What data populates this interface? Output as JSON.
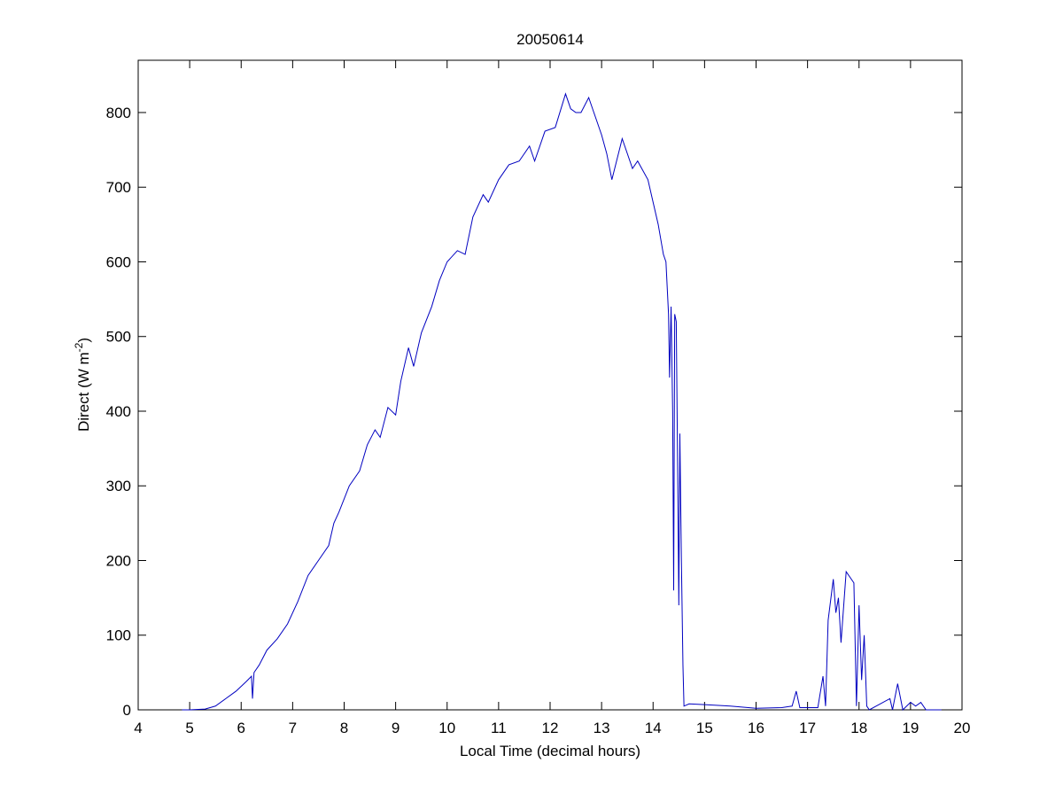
{
  "chart_data": {
    "type": "line",
    "title": "20050614",
    "xlabel": "Local Time (decimal hours)",
    "ylabel_parts": [
      "Direct (W m",
      "-2",
      ")"
    ],
    "x": [
      4.85,
      5.0,
      5.3,
      5.5,
      5.7,
      5.9,
      6.1,
      6.2,
      6.22,
      6.25,
      6.35,
      6.5,
      6.7,
      6.9,
      7.1,
      7.3,
      7.5,
      7.7,
      7.8,
      7.9,
      8.1,
      8.3,
      8.45,
      8.6,
      8.7,
      8.85,
      9.0,
      9.1,
      9.25,
      9.35,
      9.5,
      9.7,
      9.85,
      10.0,
      10.2,
      10.35,
      10.5,
      10.7,
      10.8,
      11.0,
      11.2,
      11.4,
      11.6,
      11.7,
      11.9,
      12.1,
      12.3,
      12.4,
      12.5,
      12.6,
      12.75,
      12.85,
      13.0,
      13.1,
      13.2,
      13.4,
      13.6,
      13.7,
      13.9,
      14.0,
      14.1,
      14.2,
      14.25,
      14.3,
      14.32,
      14.35,
      14.38,
      14.4,
      14.42,
      14.45,
      14.48,
      14.5,
      14.52,
      14.55,
      14.58,
      14.6,
      14.7,
      15.0,
      15.5,
      16.0,
      16.5,
      16.7,
      16.78,
      16.85,
      17.2,
      17.3,
      17.35,
      17.4,
      17.5,
      17.55,
      17.6,
      17.65,
      17.75,
      17.9,
      17.95,
      18.0,
      18.05,
      18.1,
      18.15,
      18.2,
      18.6,
      18.65,
      18.75,
      18.85,
      19.0,
      19.1,
      19.2,
      19.3,
      19.6
    ],
    "series": [
      {
        "name": "Direct",
        "color": "#0000c0",
        "values": [
          0,
          0,
          1,
          5,
          15,
          25,
          38,
          45,
          15,
          50,
          60,
          80,
          95,
          115,
          145,
          180,
          200,
          220,
          250,
          265,
          300,
          320,
          355,
          375,
          365,
          405,
          395,
          440,
          485,
          460,
          505,
          540,
          575,
          600,
          615,
          610,
          660,
          690,
          680,
          710,
          730,
          735,
          755,
          735,
          775,
          780,
          825,
          805,
          800,
          800,
          820,
          800,
          770,
          745,
          710,
          765,
          725,
          735,
          710,
          680,
          650,
          610,
          600,
          530,
          445,
          540,
          400,
          160,
          530,
          520,
          300,
          140,
          370,
          200,
          60,
          5,
          8,
          7,
          5,
          2,
          3,
          5,
          25,
          3,
          3,
          45,
          5,
          120,
          175,
          130,
          150,
          90,
          185,
          170,
          5,
          140,
          40,
          100,
          5,
          0,
          15,
          0,
          35,
          0,
          10,
          5,
          10,
          0,
          0
        ]
      }
    ],
    "xlim": [
      4,
      20
    ],
    "xticks": [
      4,
      5,
      6,
      7,
      8,
      9,
      10,
      11,
      12,
      13,
      14,
      15,
      16,
      17,
      18,
      19,
      20
    ],
    "ylim": [
      0,
      870
    ],
    "yticks": [
      0,
      100,
      200,
      300,
      400,
      500,
      600,
      700,
      800
    ]
  }
}
